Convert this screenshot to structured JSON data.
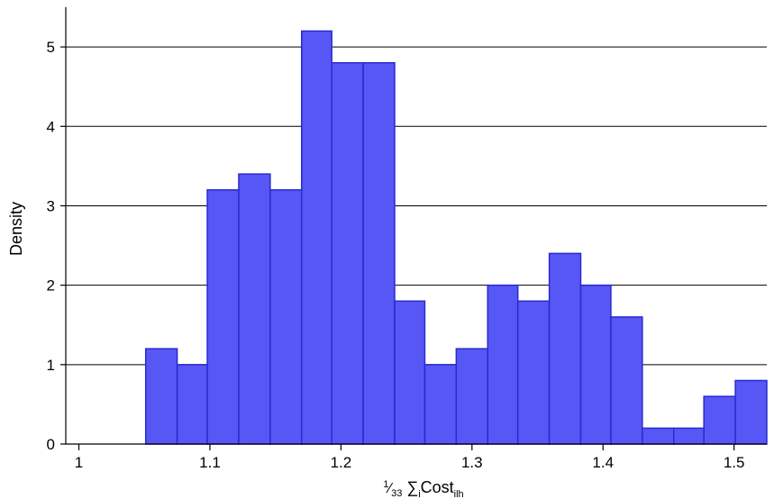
{
  "chart_data": {
    "type": "bar",
    "subtype": "histogram",
    "bin_width": 0.0237,
    "bins": [
      {
        "x0": 1.051,
        "x1": 1.075,
        "value": 1.2
      },
      {
        "x0": 1.075,
        "x1": 1.098,
        "value": 1.0
      },
      {
        "x0": 1.098,
        "x1": 1.122,
        "value": 3.2
      },
      {
        "x0": 1.122,
        "x1": 1.146,
        "value": 3.4
      },
      {
        "x0": 1.146,
        "x1": 1.17,
        "value": 3.2
      },
      {
        "x0": 1.17,
        "x1": 1.193,
        "value": 5.2
      },
      {
        "x0": 1.193,
        "x1": 1.217,
        "value": 4.8
      },
      {
        "x0": 1.217,
        "x1": 1.241,
        "value": 4.8
      },
      {
        "x0": 1.241,
        "x1": 1.264,
        "value": 1.8
      },
      {
        "x0": 1.264,
        "x1": 1.288,
        "value": 1.0
      },
      {
        "x0": 1.288,
        "x1": 1.312,
        "value": 1.2
      },
      {
        "x0": 1.312,
        "x1": 1.335,
        "value": 2.0
      },
      {
        "x0": 1.335,
        "x1": 1.359,
        "value": 1.8
      },
      {
        "x0": 1.359,
        "x1": 1.383,
        "value": 2.4
      },
      {
        "x0": 1.383,
        "x1": 1.406,
        "value": 2.0
      },
      {
        "x0": 1.406,
        "x1": 1.43,
        "value": 1.6
      },
      {
        "x0": 1.43,
        "x1": 1.454,
        "value": 0.2
      },
      {
        "x0": 1.454,
        "x1": 1.477,
        "value": 0.2
      },
      {
        "x0": 1.477,
        "x1": 1.501,
        "value": 0.6
      },
      {
        "x0": 1.501,
        "x1": 1.525,
        "value": 0.8
      }
    ],
    "xlim": [
      0.99,
      1.525
    ],
    "ylim": [
      0,
      5.5
    ],
    "xticks": [
      1,
      1.1,
      1.2,
      1.3,
      1.4,
      1.5
    ],
    "xtick_labels": [
      "1",
      "1.1",
      "1.2",
      "1.3",
      "1.4",
      "1.5"
    ],
    "yticks": [
      0,
      1,
      2,
      3,
      4,
      5
    ],
    "ytick_labels": [
      "0",
      "1",
      "2",
      "3",
      "4",
      "5"
    ],
    "ylabel": "Density",
    "xlabel": {
      "fraction_num": "1",
      "fraction_den": "33",
      "sigma": "∑",
      "sigma_sub": "i",
      "main": "Cost",
      "main_sub": "ilh"
    },
    "grid": "horizontal",
    "colors": {
      "bar_fill": "#5757f5",
      "bar_stroke": "#2a2ad0",
      "grid": "#000000",
      "axis": "#000000"
    }
  }
}
